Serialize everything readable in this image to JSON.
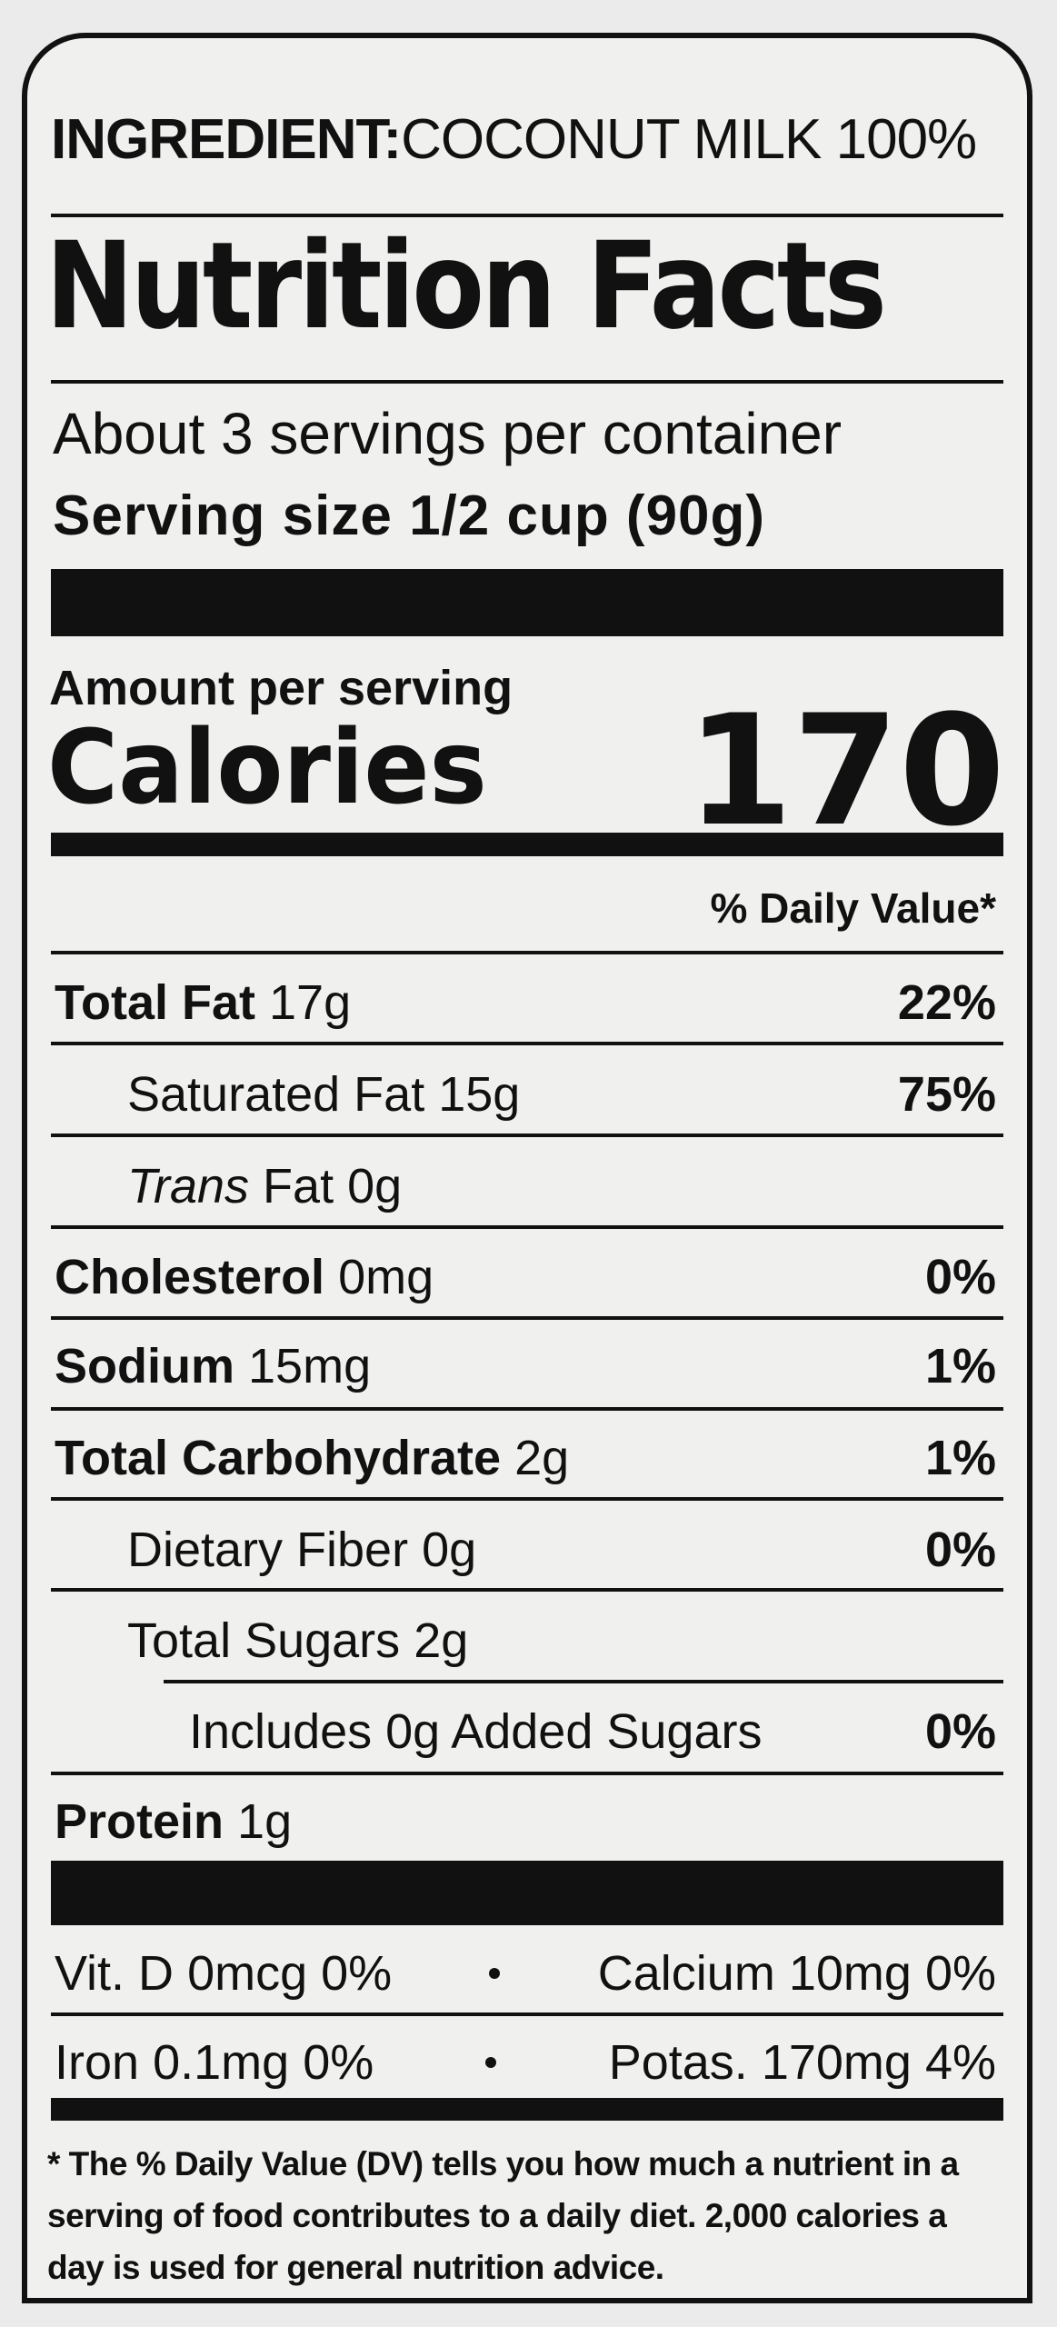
{
  "ingredient": {
    "label": "INGREDIENT:",
    "value": "COCONUT MILK 100%"
  },
  "title": "Nutrition Facts",
  "servings": "About 3 servings per container",
  "serving_size": {
    "label": "Serving size",
    "value": "1/2 cup (90g)"
  },
  "amount_per_serving": "Amount per serving",
  "calories": {
    "label": "Calories",
    "value": "170"
  },
  "daily_value_header": "% Daily Value*",
  "total_fat": {
    "name": "Total Fat",
    "amount": "17g",
    "dv": "22%"
  },
  "saturated_fat": {
    "name": "Saturated Fat",
    "amount": "15g",
    "dv": "75%"
  },
  "trans_fat": {
    "name_italic": "Trans",
    "name": "Fat",
    "amount": "0g"
  },
  "cholesterol": {
    "name": "Cholesterol",
    "amount": "0mg",
    "dv": "0%"
  },
  "sodium": {
    "name": "Sodium",
    "amount": "15mg",
    "dv": "1%"
  },
  "total_carbohydrate": {
    "name": "Total Carbohydrate",
    "amount": "2g",
    "dv": "1%"
  },
  "dietary_fiber": {
    "name": "Dietary Fiber",
    "amount": "0g",
    "dv": "0%"
  },
  "total_sugars": {
    "name": "Total Sugars",
    "amount": "2g"
  },
  "added_sugars": {
    "text": "Includes 0g Added Sugars",
    "dv": "0%"
  },
  "protein": {
    "name": "Protein",
    "amount": "1g"
  },
  "vitamins": [
    {
      "name": "Vit. D",
      "amount": "0mcg",
      "dv": "0%"
    },
    {
      "name": "Calcium",
      "amount": "10mg",
      "dv": "0%"
    },
    {
      "name": "Iron",
      "amount": "0.1mg",
      "dv": "0%"
    },
    {
      "name": "Potas.",
      "amount": "170mg",
      "dv": "4%"
    }
  ],
  "footnote": "* The % Daily Value (DV) tells you how much a nutrient in a serving of food contributes to a daily diet. 2,000 calories a day is used for general nutrition advice."
}
